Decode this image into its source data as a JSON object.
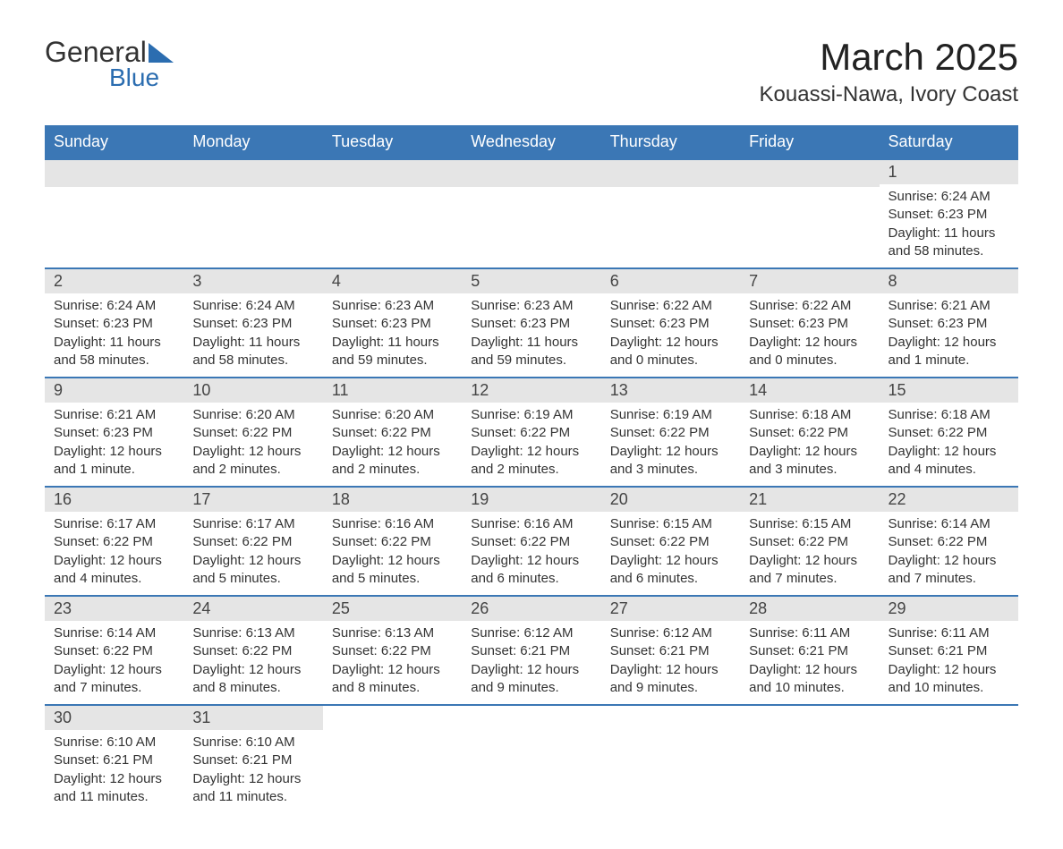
{
  "logo": {
    "text1": "General",
    "text2": "Blue",
    "triangle_color": "#2b6db0"
  },
  "title": "March 2025",
  "location": "Kouassi-Nawa, Ivory Coast",
  "header_bg": "#3b77b5",
  "header_fg": "#ffffff",
  "daynum_bg": "#e5e5e5",
  "row_border": "#3b77b5",
  "week_days": [
    "Sunday",
    "Monday",
    "Tuesday",
    "Wednesday",
    "Thursday",
    "Friday",
    "Saturday"
  ],
  "weeks": [
    [
      null,
      null,
      null,
      null,
      null,
      null,
      {
        "d": "1",
        "sr": "6:24 AM",
        "ss": "6:23 PM",
        "dl": "11 hours and 58 minutes."
      }
    ],
    [
      {
        "d": "2",
        "sr": "6:24 AM",
        "ss": "6:23 PM",
        "dl": "11 hours and 58 minutes."
      },
      {
        "d": "3",
        "sr": "6:24 AM",
        "ss": "6:23 PM",
        "dl": "11 hours and 58 minutes."
      },
      {
        "d": "4",
        "sr": "6:23 AM",
        "ss": "6:23 PM",
        "dl": "11 hours and 59 minutes."
      },
      {
        "d": "5",
        "sr": "6:23 AM",
        "ss": "6:23 PM",
        "dl": "11 hours and 59 minutes."
      },
      {
        "d": "6",
        "sr": "6:22 AM",
        "ss": "6:23 PM",
        "dl": "12 hours and 0 minutes."
      },
      {
        "d": "7",
        "sr": "6:22 AM",
        "ss": "6:23 PM",
        "dl": "12 hours and 0 minutes."
      },
      {
        "d": "8",
        "sr": "6:21 AM",
        "ss": "6:23 PM",
        "dl": "12 hours and 1 minute."
      }
    ],
    [
      {
        "d": "9",
        "sr": "6:21 AM",
        "ss": "6:23 PM",
        "dl": "12 hours and 1 minute."
      },
      {
        "d": "10",
        "sr": "6:20 AM",
        "ss": "6:22 PM",
        "dl": "12 hours and 2 minutes."
      },
      {
        "d": "11",
        "sr": "6:20 AM",
        "ss": "6:22 PM",
        "dl": "12 hours and 2 minutes."
      },
      {
        "d": "12",
        "sr": "6:19 AM",
        "ss": "6:22 PM",
        "dl": "12 hours and 2 minutes."
      },
      {
        "d": "13",
        "sr": "6:19 AM",
        "ss": "6:22 PM",
        "dl": "12 hours and 3 minutes."
      },
      {
        "d": "14",
        "sr": "6:18 AM",
        "ss": "6:22 PM",
        "dl": "12 hours and 3 minutes."
      },
      {
        "d": "15",
        "sr": "6:18 AM",
        "ss": "6:22 PM",
        "dl": "12 hours and 4 minutes."
      }
    ],
    [
      {
        "d": "16",
        "sr": "6:17 AM",
        "ss": "6:22 PM",
        "dl": "12 hours and 4 minutes."
      },
      {
        "d": "17",
        "sr": "6:17 AM",
        "ss": "6:22 PM",
        "dl": "12 hours and 5 minutes."
      },
      {
        "d": "18",
        "sr": "6:16 AM",
        "ss": "6:22 PM",
        "dl": "12 hours and 5 minutes."
      },
      {
        "d": "19",
        "sr": "6:16 AM",
        "ss": "6:22 PM",
        "dl": "12 hours and 6 minutes."
      },
      {
        "d": "20",
        "sr": "6:15 AM",
        "ss": "6:22 PM",
        "dl": "12 hours and 6 minutes."
      },
      {
        "d": "21",
        "sr": "6:15 AM",
        "ss": "6:22 PM",
        "dl": "12 hours and 7 minutes."
      },
      {
        "d": "22",
        "sr": "6:14 AM",
        "ss": "6:22 PM",
        "dl": "12 hours and 7 minutes."
      }
    ],
    [
      {
        "d": "23",
        "sr": "6:14 AM",
        "ss": "6:22 PM",
        "dl": "12 hours and 7 minutes."
      },
      {
        "d": "24",
        "sr": "6:13 AM",
        "ss": "6:22 PM",
        "dl": "12 hours and 8 minutes."
      },
      {
        "d": "25",
        "sr": "6:13 AM",
        "ss": "6:22 PM",
        "dl": "12 hours and 8 minutes."
      },
      {
        "d": "26",
        "sr": "6:12 AM",
        "ss": "6:21 PM",
        "dl": "12 hours and 9 minutes."
      },
      {
        "d": "27",
        "sr": "6:12 AM",
        "ss": "6:21 PM",
        "dl": "12 hours and 9 minutes."
      },
      {
        "d": "28",
        "sr": "6:11 AM",
        "ss": "6:21 PM",
        "dl": "12 hours and 10 minutes."
      },
      {
        "d": "29",
        "sr": "6:11 AM",
        "ss": "6:21 PM",
        "dl": "12 hours and 10 minutes."
      }
    ],
    [
      {
        "d": "30",
        "sr": "6:10 AM",
        "ss": "6:21 PM",
        "dl": "12 hours and 11 minutes."
      },
      {
        "d": "31",
        "sr": "6:10 AM",
        "ss": "6:21 PM",
        "dl": "12 hours and 11 minutes."
      },
      null,
      null,
      null,
      null,
      null
    ]
  ],
  "labels": {
    "sunrise": "Sunrise: ",
    "sunset": "Sunset: ",
    "daylight": "Daylight: "
  }
}
